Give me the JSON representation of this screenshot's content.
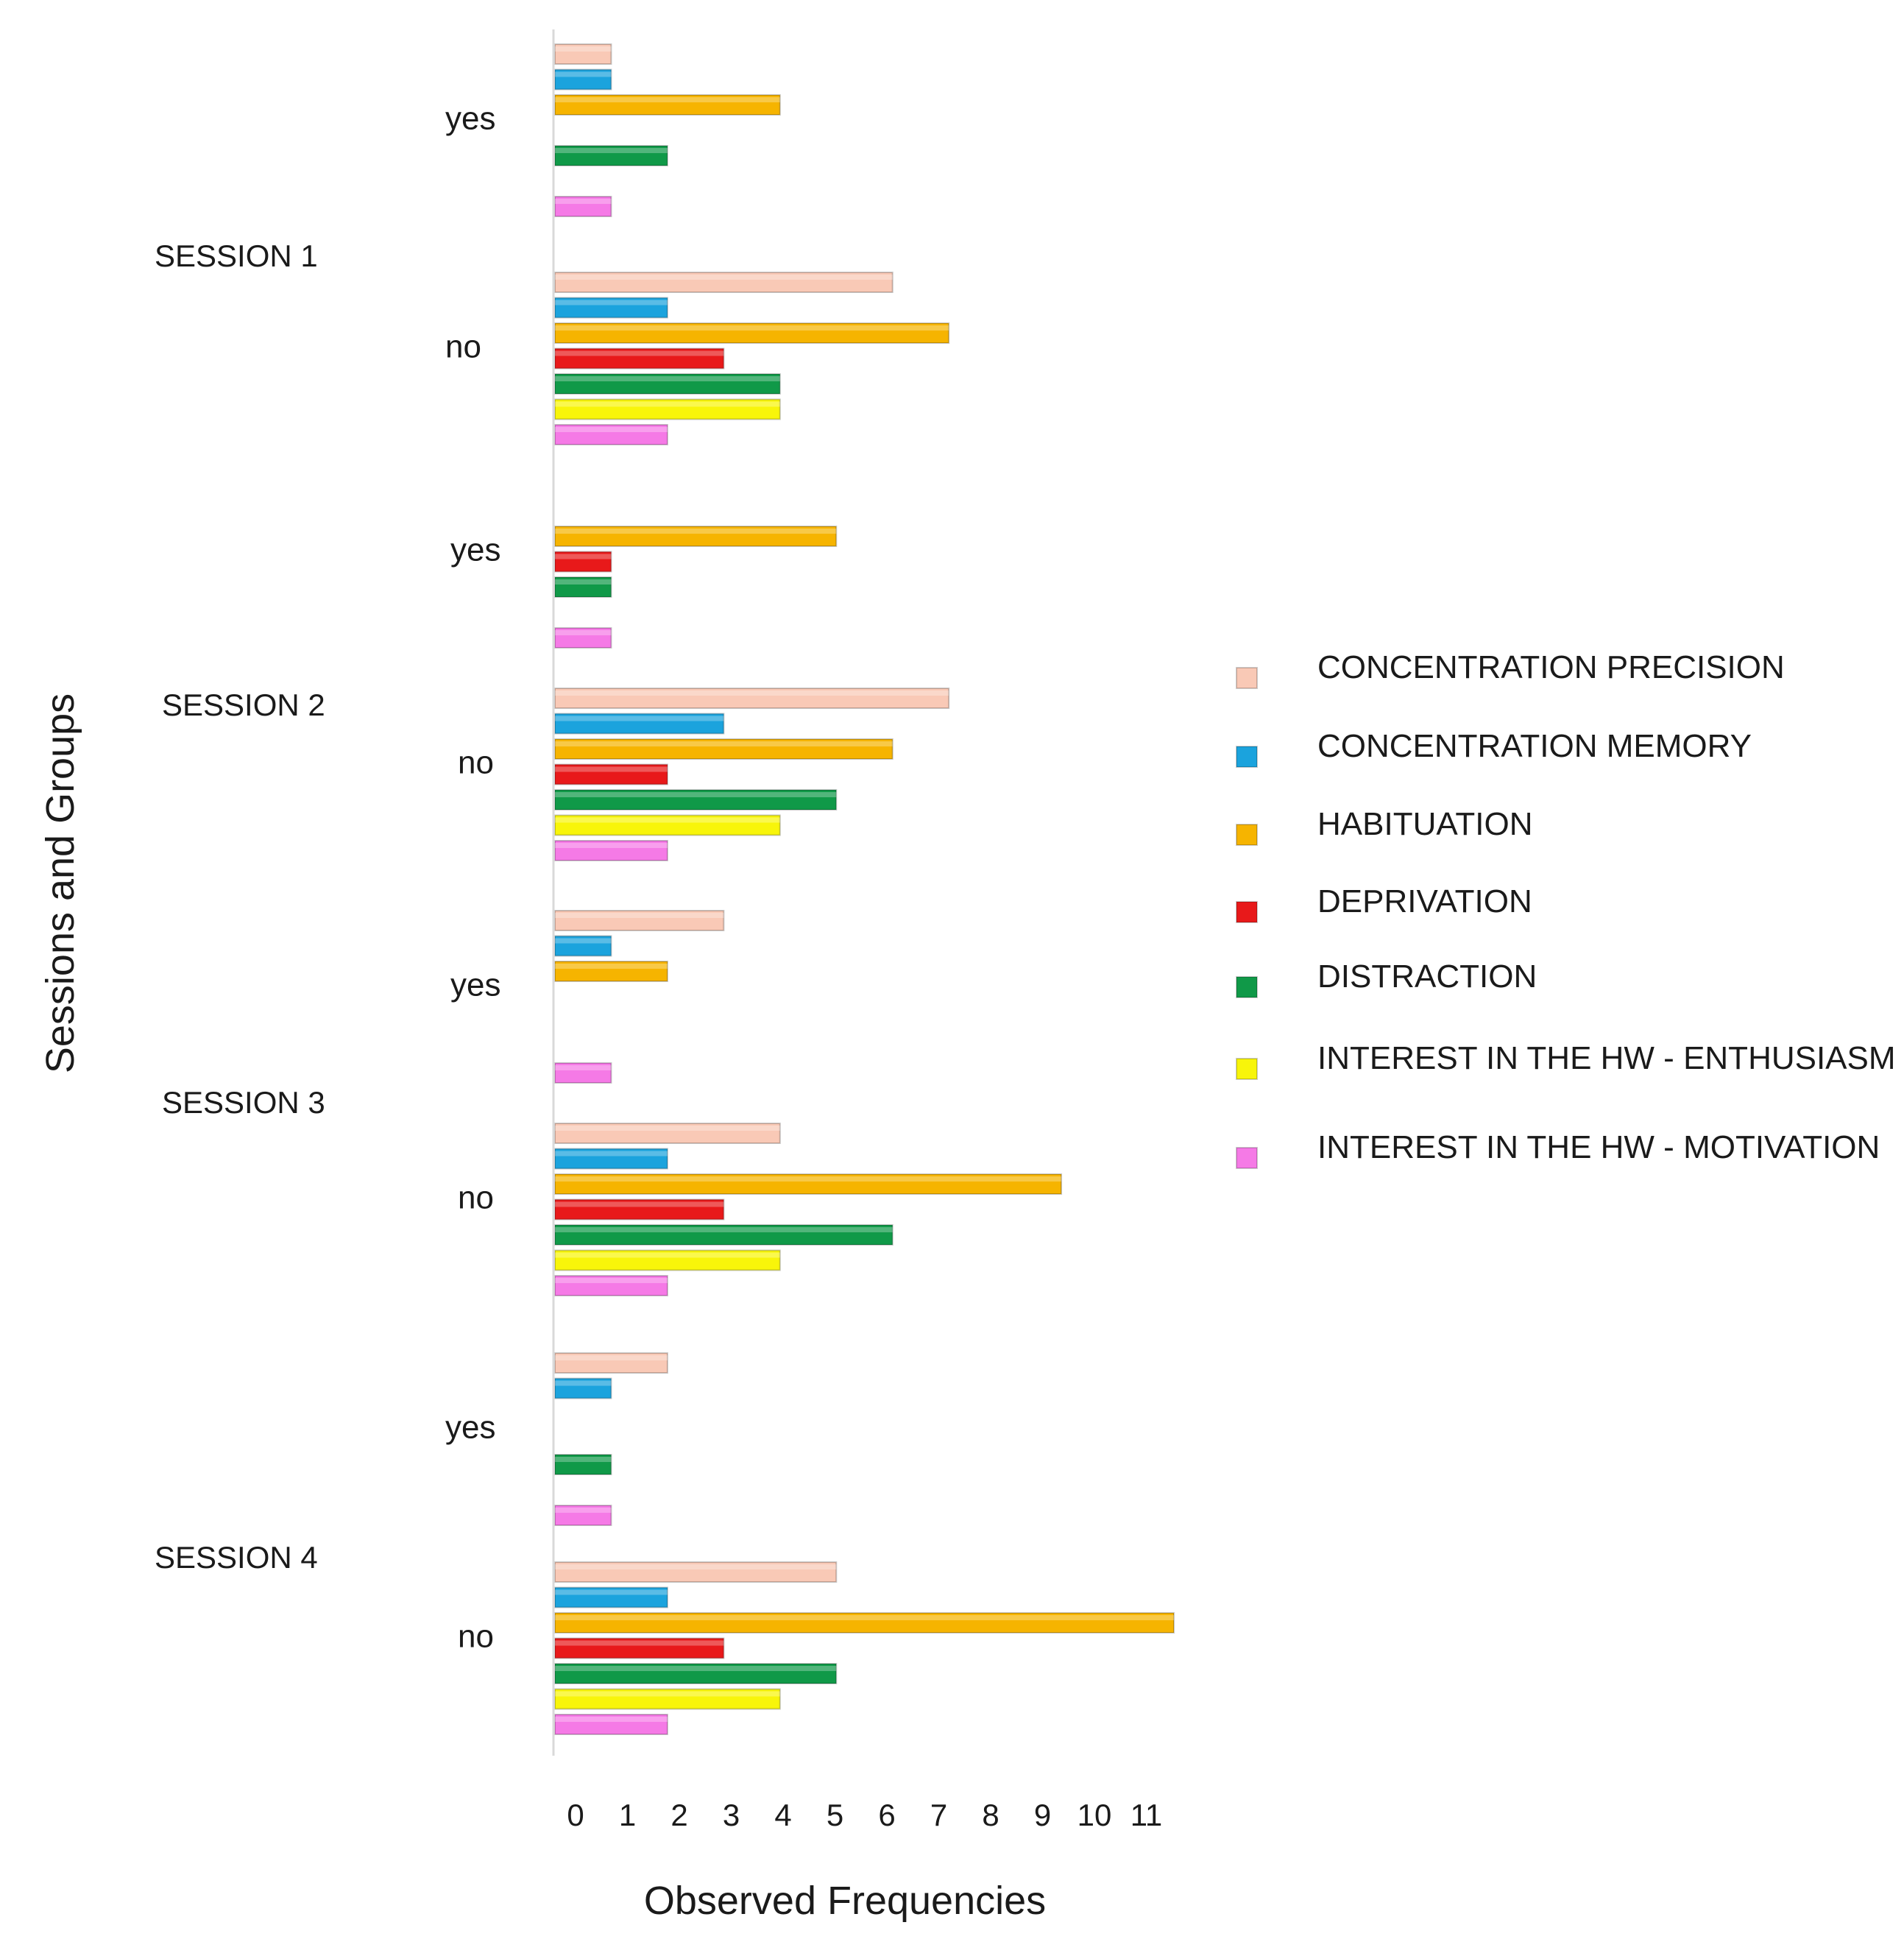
{
  "chart_data": {
    "type": "bar",
    "orientation": "horizontal",
    "title": "",
    "xlabel": "Observed Frequencies",
    "ylabel": "Sessions and Groups",
    "xlim": [
      0,
      11
    ],
    "x_ticks": [
      "0",
      "1",
      "2",
      "3",
      "4",
      "5",
      "6",
      "7",
      "8",
      "9",
      "10",
      "11"
    ],
    "grid": false,
    "legend_position": "right",
    "series": [
      {
        "name": "CONCENTRATION PRECISION",
        "color": "#f9c9b6"
      },
      {
        "name": "CONCENTRATION MEMORY",
        "color": "#1ba3dd"
      },
      {
        "name": "HABITUATION",
        "color": "#f6b400"
      },
      {
        "name": "DEPRIVATION",
        "color": "#e8191a"
      },
      {
        "name": "DISTRACTION",
        "color": "#109948"
      },
      {
        "name": "INTEREST IN THE HW - ENTHUSIASM",
        "color": "#f8f50a"
      },
      {
        "name": "INTEREST IN THE HW - MOTIVATION",
        "color": "#f57ae6"
      }
    ],
    "sessions": [
      {
        "label": "SESSION 1",
        "groups": [
          {
            "label": "yes",
            "values": [
              1,
              1,
              4,
              0,
              2,
              0,
              1
            ]
          },
          {
            "label": "no",
            "values": [
              6,
              2,
              7,
              3,
              4,
              4,
              2
            ]
          }
        ]
      },
      {
        "label": "SESSION 2",
        "groups": [
          {
            "label": "yes",
            "values": [
              0,
              0,
              5,
              1,
              1,
              0,
              1
            ]
          },
          {
            "label": "no",
            "values": [
              7,
              3,
              6,
              2,
              5,
              4,
              2
            ]
          }
        ]
      },
      {
        "label": "SESSION 3",
        "groups": [
          {
            "label": "yes",
            "values": [
              3,
              1,
              2,
              0,
              0,
              0,
              1
            ]
          },
          {
            "label": "no",
            "values": [
              4,
              2,
              9,
              3,
              6,
              4,
              2
            ]
          }
        ]
      },
      {
        "label": "SESSION 4",
        "groups": [
          {
            "label": "yes",
            "values": [
              2,
              1,
              0,
              0,
              1,
              0,
              1
            ]
          },
          {
            "label": "no",
            "values": [
              5,
              2,
              11,
              3,
              5,
              4,
              2
            ]
          }
        ]
      }
    ]
  }
}
